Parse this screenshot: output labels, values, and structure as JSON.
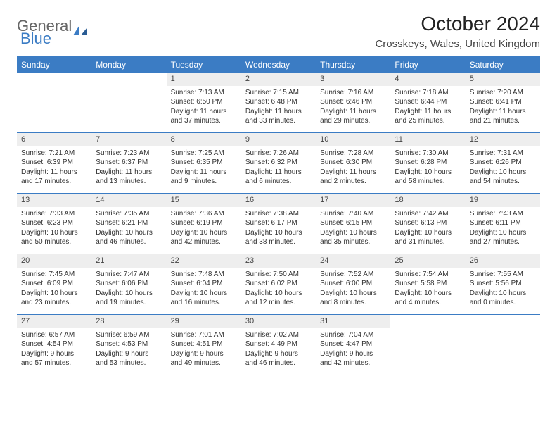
{
  "logo": {
    "general": "General",
    "blue": "Blue"
  },
  "title": "October 2024",
  "location": "Crosskeys, Wales, United Kingdom",
  "colors": {
    "accent": "#3b7cc4",
    "header_text": "#ffffff",
    "daynum_bg": "#eeeeee",
    "text": "#333333",
    "bg": "#ffffff"
  },
  "day_names": [
    "Sunday",
    "Monday",
    "Tuesday",
    "Wednesday",
    "Thursday",
    "Friday",
    "Saturday"
  ],
  "first_day_column": 2,
  "days": [
    {
      "n": 1,
      "sunrise": "7:13 AM",
      "sunset": "6:50 PM",
      "daylight": "11 hours and 37 minutes."
    },
    {
      "n": 2,
      "sunrise": "7:15 AM",
      "sunset": "6:48 PM",
      "daylight": "11 hours and 33 minutes."
    },
    {
      "n": 3,
      "sunrise": "7:16 AM",
      "sunset": "6:46 PM",
      "daylight": "11 hours and 29 minutes."
    },
    {
      "n": 4,
      "sunrise": "7:18 AM",
      "sunset": "6:44 PM",
      "daylight": "11 hours and 25 minutes."
    },
    {
      "n": 5,
      "sunrise": "7:20 AM",
      "sunset": "6:41 PM",
      "daylight": "11 hours and 21 minutes."
    },
    {
      "n": 6,
      "sunrise": "7:21 AM",
      "sunset": "6:39 PM",
      "daylight": "11 hours and 17 minutes."
    },
    {
      "n": 7,
      "sunrise": "7:23 AM",
      "sunset": "6:37 PM",
      "daylight": "11 hours and 13 minutes."
    },
    {
      "n": 8,
      "sunrise": "7:25 AM",
      "sunset": "6:35 PM",
      "daylight": "11 hours and 9 minutes."
    },
    {
      "n": 9,
      "sunrise": "7:26 AM",
      "sunset": "6:32 PM",
      "daylight": "11 hours and 6 minutes."
    },
    {
      "n": 10,
      "sunrise": "7:28 AM",
      "sunset": "6:30 PM",
      "daylight": "11 hours and 2 minutes."
    },
    {
      "n": 11,
      "sunrise": "7:30 AM",
      "sunset": "6:28 PM",
      "daylight": "10 hours and 58 minutes."
    },
    {
      "n": 12,
      "sunrise": "7:31 AM",
      "sunset": "6:26 PM",
      "daylight": "10 hours and 54 minutes."
    },
    {
      "n": 13,
      "sunrise": "7:33 AM",
      "sunset": "6:23 PM",
      "daylight": "10 hours and 50 minutes."
    },
    {
      "n": 14,
      "sunrise": "7:35 AM",
      "sunset": "6:21 PM",
      "daylight": "10 hours and 46 minutes."
    },
    {
      "n": 15,
      "sunrise": "7:36 AM",
      "sunset": "6:19 PM",
      "daylight": "10 hours and 42 minutes."
    },
    {
      "n": 16,
      "sunrise": "7:38 AM",
      "sunset": "6:17 PM",
      "daylight": "10 hours and 38 minutes."
    },
    {
      "n": 17,
      "sunrise": "7:40 AM",
      "sunset": "6:15 PM",
      "daylight": "10 hours and 35 minutes."
    },
    {
      "n": 18,
      "sunrise": "7:42 AM",
      "sunset": "6:13 PM",
      "daylight": "10 hours and 31 minutes."
    },
    {
      "n": 19,
      "sunrise": "7:43 AM",
      "sunset": "6:11 PM",
      "daylight": "10 hours and 27 minutes."
    },
    {
      "n": 20,
      "sunrise": "7:45 AM",
      "sunset": "6:09 PM",
      "daylight": "10 hours and 23 minutes."
    },
    {
      "n": 21,
      "sunrise": "7:47 AM",
      "sunset": "6:06 PM",
      "daylight": "10 hours and 19 minutes."
    },
    {
      "n": 22,
      "sunrise": "7:48 AM",
      "sunset": "6:04 PM",
      "daylight": "10 hours and 16 minutes."
    },
    {
      "n": 23,
      "sunrise": "7:50 AM",
      "sunset": "6:02 PM",
      "daylight": "10 hours and 12 minutes."
    },
    {
      "n": 24,
      "sunrise": "7:52 AM",
      "sunset": "6:00 PM",
      "daylight": "10 hours and 8 minutes."
    },
    {
      "n": 25,
      "sunrise": "7:54 AM",
      "sunset": "5:58 PM",
      "daylight": "10 hours and 4 minutes."
    },
    {
      "n": 26,
      "sunrise": "7:55 AM",
      "sunset": "5:56 PM",
      "daylight": "10 hours and 0 minutes."
    },
    {
      "n": 27,
      "sunrise": "6:57 AM",
      "sunset": "4:54 PM",
      "daylight": "9 hours and 57 minutes."
    },
    {
      "n": 28,
      "sunrise": "6:59 AM",
      "sunset": "4:53 PM",
      "daylight": "9 hours and 53 minutes."
    },
    {
      "n": 29,
      "sunrise": "7:01 AM",
      "sunset": "4:51 PM",
      "daylight": "9 hours and 49 minutes."
    },
    {
      "n": 30,
      "sunrise": "7:02 AM",
      "sunset": "4:49 PM",
      "daylight": "9 hours and 46 minutes."
    },
    {
      "n": 31,
      "sunrise": "7:04 AM",
      "sunset": "4:47 PM",
      "daylight": "9 hours and 42 minutes."
    }
  ],
  "labels": {
    "sunrise": "Sunrise:",
    "sunset": "Sunset:",
    "daylight": "Daylight:"
  }
}
